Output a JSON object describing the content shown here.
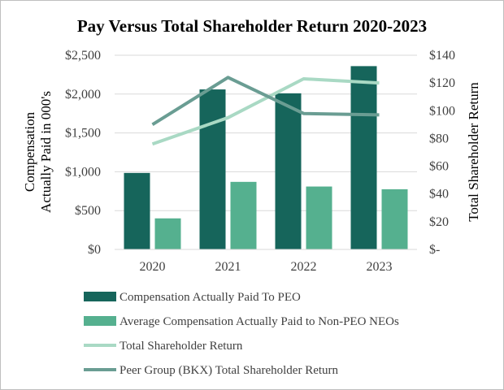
{
  "chart_data": {
    "type": "bar+line",
    "title": "Pay Versus Total Shareholder Return 2020-2023",
    "categories": [
      "2020",
      "2021",
      "2022",
      "2023"
    ],
    "ylabel_left_lines": [
      "Compensation",
      "Actually Paid in 000's"
    ],
    "ylabel_right": "Total Shareholder Return",
    "ylim_left": [
      0,
      2500
    ],
    "ylim_right": [
      0,
      140
    ],
    "left_ticks": [
      {
        "value": 0,
        "label": "$0"
      },
      {
        "value": 500,
        "label": "$500"
      },
      {
        "value": 1000,
        "label": "$1,000"
      },
      {
        "value": 1500,
        "label": "$1,500"
      },
      {
        "value": 2000,
        "label": "$2,000"
      },
      {
        "value": 2500,
        "label": "$2,500"
      }
    ],
    "right_ticks": [
      {
        "value": 0,
        "label": "$-"
      },
      {
        "value": 20,
        "label": "$20"
      },
      {
        "value": 40,
        "label": "$40"
      },
      {
        "value": 60,
        "label": "$60"
      },
      {
        "value": 80,
        "label": "$80"
      },
      {
        "value": 100,
        "label": "$100"
      },
      {
        "value": 120,
        "label": "$120"
      },
      {
        "value": 140,
        "label": "$140"
      }
    ],
    "bar_series": [
      {
        "name": "Compensation Actually Paid To PEO",
        "color": "#16655b",
        "values": [
          985,
          2060,
          2010,
          2360
        ]
      },
      {
        "name": "Average Compensation Actually Paid to Non-PEO NEOs",
        "color": "#55b08f",
        "values": [
          400,
          870,
          810,
          775
        ]
      }
    ],
    "line_series": [
      {
        "name": "Total Shareholder Return",
        "color": "#a9d9c4",
        "values": [
          76,
          95,
          123,
          120
        ]
      },
      {
        "name": "Peer Group (BKX) Total Shareholder Return",
        "color": "#6a9d93",
        "values": [
          90,
          124,
          98,
          97
        ]
      }
    ],
    "legend_position": "bottom"
  }
}
